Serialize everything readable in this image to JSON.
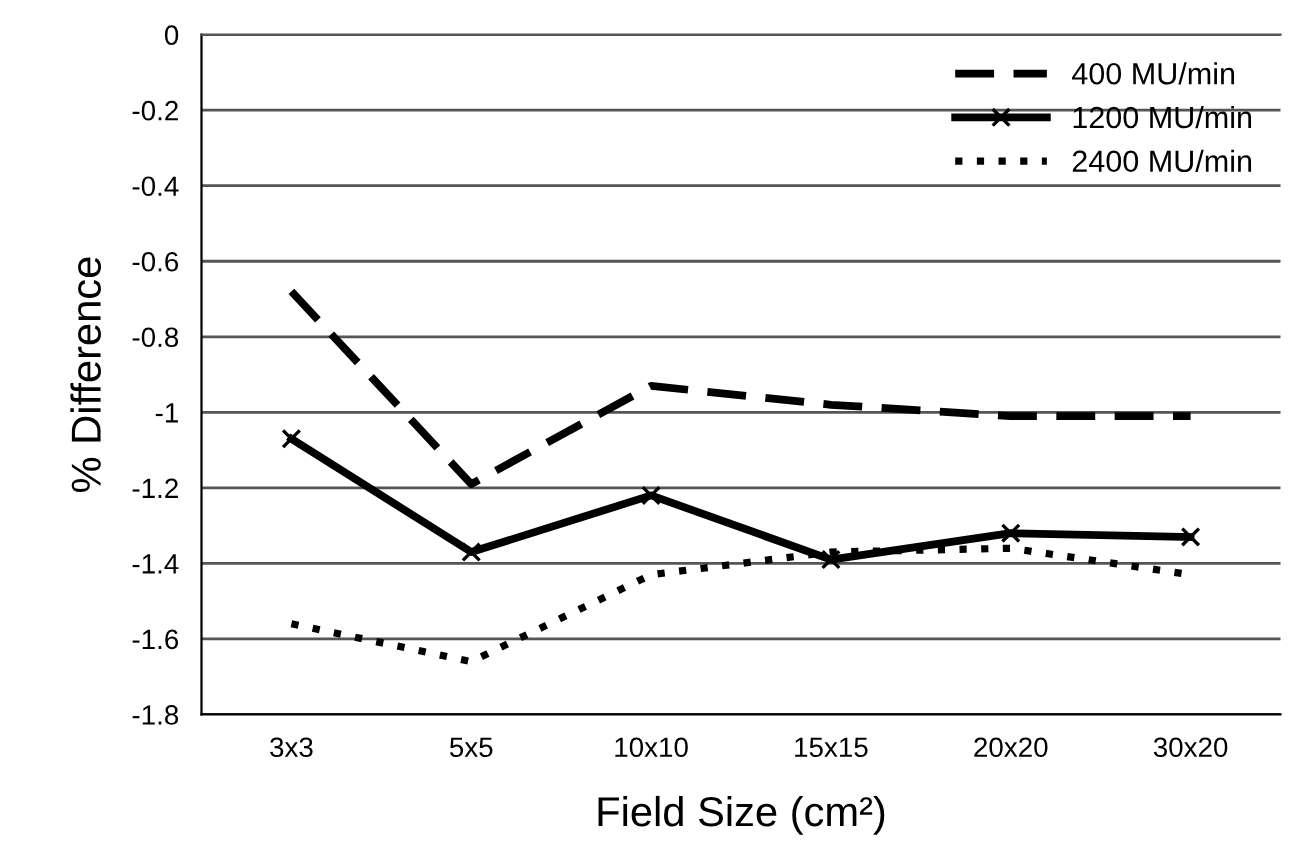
{
  "chart_data": {
    "type": "line",
    "xlabel": "Field Size (cm²)",
    "ylabel": "% Difference",
    "categories": [
      "3x3",
      "5x5",
      "10x10",
      "15x15",
      "20x20",
      "30x20"
    ],
    "series": [
      {
        "name": "400 MU/min",
        "color": "#000000",
        "line_style": "dashed",
        "marker": "none",
        "values": [
          -0.68,
          -1.19,
          -0.93,
          -0.98,
          -1.01,
          -1.01
        ]
      },
      {
        "name": "1200 MU/min",
        "color": "#000000",
        "line_style": "solid",
        "marker": "cross",
        "values": [
          -1.07,
          -1.37,
          -1.22,
          -1.39,
          -1.32,
          -1.33
        ]
      },
      {
        "name": "2400 MU/min",
        "color": "#000000",
        "line_style": "dotted",
        "marker": "none",
        "values": [
          -1.56,
          -1.66,
          -1.43,
          -1.37,
          -1.36,
          -1.43
        ]
      }
    ],
    "ylim": [
      -1.8,
      0
    ],
    "yticks": [
      0,
      -0.2,
      -0.4,
      -0.6,
      -0.8,
      -1,
      -1.2,
      -1.4,
      -1.6,
      -1.8
    ],
    "grid": "y",
    "legend": "top right"
  }
}
